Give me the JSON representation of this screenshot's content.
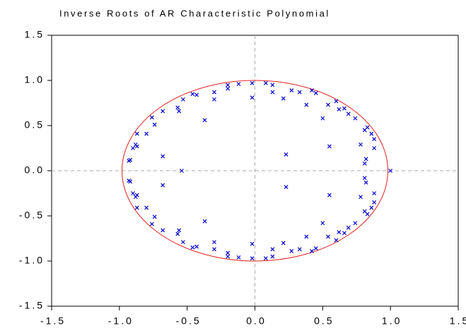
{
  "chart_data": {
    "type": "scatter",
    "title": "Inverse Roots of AR Characteristic Polynomial",
    "series": [
      {
        "color": "#0000cc",
        "x": [
          1.0,
          -0.54,
          -0.93,
          -0.92,
          -0.88,
          -0.9,
          -0.87,
          -0.8,
          -0.87,
          -0.76,
          -0.68,
          -0.74,
          -0.68,
          -0.57,
          -0.56,
          -0.53,
          -0.46,
          -0.43,
          -0.37,
          -0.3,
          -0.3,
          -0.2,
          -0.2,
          -0.12,
          -0.02,
          -0.02,
          0.08,
          0.13,
          0.13,
          0.21,
          0.23,
          0.27,
          0.33,
          0.38,
          0.42,
          0.45,
          0.5,
          0.54,
          0.55,
          0.6,
          0.62,
          0.66,
          0.69,
          0.74,
          0.78,
          0.81,
          0.83,
          0.82,
          0.81,
          0.86,
          0.88,
          0.88,
          -0.93,
          -0.92,
          -0.88,
          -0.9,
          -0.87,
          -0.8,
          -0.87,
          -0.76,
          -0.68,
          -0.74,
          -0.68,
          -0.57,
          -0.56,
          -0.53,
          -0.46,
          -0.43,
          -0.37,
          -0.3,
          -0.3,
          -0.2,
          -0.2,
          -0.12,
          -0.02,
          -0.02,
          0.08,
          0.13,
          0.13,
          0.21,
          0.23,
          0.27,
          0.33,
          0.38,
          0.42,
          0.45,
          0.5,
          0.54,
          0.55,
          0.6,
          0.62,
          0.66,
          0.69,
          0.74,
          0.78,
          0.81,
          0.83,
          0.82,
          0.81,
          0.86,
          0.88,
          0.88
        ],
        "y": [
          0.0,
          0.0,
          0.11,
          0.12,
          0.29,
          0.25,
          0.41,
          0.41,
          0.27,
          0.59,
          0.66,
          0.51,
          0.16,
          0.7,
          0.66,
          0.79,
          0.85,
          0.84,
          0.56,
          0.87,
          0.79,
          0.91,
          0.95,
          0.96,
          0.81,
          0.97,
          0.97,
          0.95,
          0.87,
          0.8,
          0.18,
          0.89,
          0.87,
          0.73,
          0.89,
          0.86,
          0.58,
          0.73,
          0.27,
          0.77,
          0.68,
          0.69,
          0.63,
          0.58,
          0.29,
          0.45,
          0.48,
          0.13,
          0.08,
          0.41,
          0.35,
          0.25,
          -0.11,
          -0.12,
          -0.29,
          -0.25,
          -0.41,
          -0.41,
          -0.27,
          -0.59,
          -0.66,
          -0.51,
          -0.16,
          -0.7,
          -0.66,
          -0.79,
          -0.85,
          -0.84,
          -0.56,
          -0.87,
          -0.79,
          -0.91,
          -0.95,
          -0.96,
          -0.81,
          -0.97,
          -0.97,
          -0.95,
          -0.87,
          -0.8,
          -0.18,
          -0.89,
          -0.87,
          -0.73,
          -0.89,
          -0.86,
          -0.58,
          -0.73,
          -0.27,
          -0.77,
          -0.68,
          -0.69,
          -0.63,
          -0.58,
          -0.29,
          -0.45,
          -0.48,
          -0.13,
          -0.08,
          -0.41,
          -0.35,
          -0.25
        ]
      }
    ],
    "xlim": [
      -1.5,
      1.5
    ],
    "ylim": [
      -1.5,
      1.5
    ],
    "xticks": [
      -1.5,
      {
        "value": -1,
        "label": "-1.0"
      },
      -0.5,
      {
        "value": 0,
        "label": "0.0"
      },
      0.5,
      {
        "value": 1,
        "label": "1.0"
      },
      1.5
    ],
    "yticks": [
      -1.5,
      {
        "value": -1,
        "label": "-1.0"
      },
      -0.5,
      {
        "value": 0,
        "label": "0.0"
      },
      0.5,
      {
        "value": 1,
        "label": "1.0"
      },
      1.5
    ]
  }
}
